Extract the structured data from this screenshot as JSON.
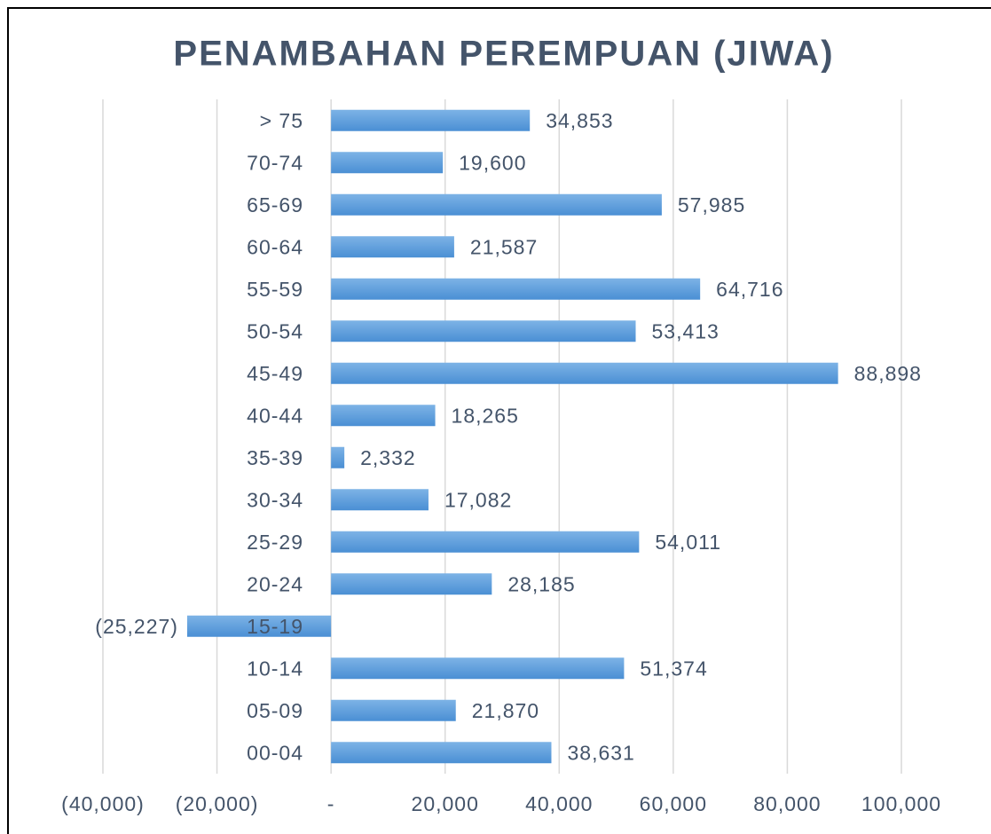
{
  "chart_data": {
    "type": "bar",
    "orientation": "horizontal",
    "title": "PENAMBAHAN PEREMPUAN (JIWA)",
    "categories": [
      "> 75",
      "70-74",
      "65-69",
      "60-64",
      "55-59",
      "50-54",
      "45-49",
      "40-44",
      "35-39",
      "30-34",
      "25-29",
      "20-24",
      "15-19",
      "10-14",
      "05-09",
      "00-04"
    ],
    "values": [
      34853,
      19600,
      57985,
      21587,
      64716,
      53413,
      88898,
      18265,
      2332,
      17082,
      54011,
      28185,
      -25227,
      51374,
      21870,
      38631
    ],
    "value_labels": [
      "34,853",
      "19,600",
      "57,985",
      "21,587",
      "64,716",
      "53,413",
      "88,898",
      "18,265",
      "2,332",
      "17,082",
      "54,011",
      "28,185",
      "(25,227)",
      "51,374",
      "21,870",
      "38,631"
    ],
    "color": "#5b9bd5",
    "xlim": [
      -40000,
      100000
    ],
    "xticks": [
      {
        "value": -40000,
        "label": "(40,000)"
      },
      {
        "value": -20000,
        "label": "(20,000)"
      },
      {
        "value": 0,
        "label": "-"
      },
      {
        "value": 20000,
        "label": "20,000"
      },
      {
        "value": 40000,
        "label": "40,000"
      },
      {
        "value": 60000,
        "label": "60,000"
      },
      {
        "value": 80000,
        "label": "80,000"
      },
      {
        "value": 100000,
        "label": "100,000"
      }
    ],
    "grid": true
  }
}
